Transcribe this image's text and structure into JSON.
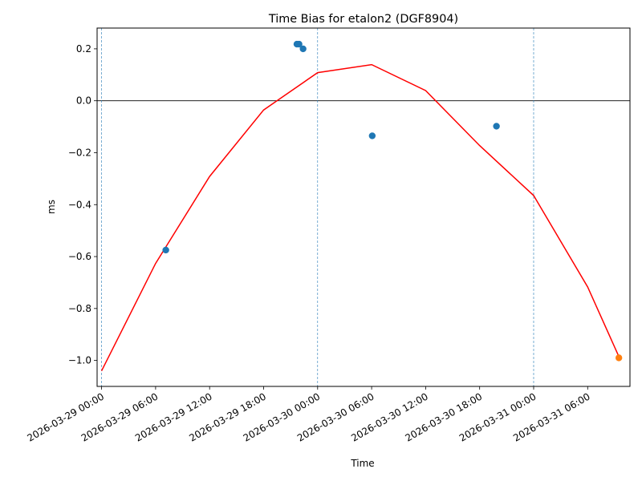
{
  "chart_data": {
    "type": "scatter",
    "title": "Time Bias for etalon2 (DGF8904)",
    "xlabel": "Time",
    "ylabel": "ms",
    "xlim": [
      "2026-03-28T23:30",
      "2026-03-31T10:42"
    ],
    "ylim": [
      -1.1,
      0.28
    ],
    "x_ticks": [
      "2026-03-29 00:00",
      "2026-03-29 06:00",
      "2026-03-29 12:00",
      "2026-03-29 18:00",
      "2026-03-30 00:00",
      "2026-03-30 06:00",
      "2026-03-30 12:00",
      "2026-03-30 18:00",
      "2026-03-31 00:00",
      "2026-03-31 06:00"
    ],
    "x_tick_values": [
      "2026-03-29T00:00",
      "2026-03-29T06:00",
      "2026-03-29T12:00",
      "2026-03-29T18:00",
      "2026-03-30T00:00",
      "2026-03-30T06:00",
      "2026-03-30T12:00",
      "2026-03-30T18:00",
      "2026-03-31T00:00",
      "2026-03-31T06:00"
    ],
    "y_ticks": [
      "−1.0",
      "−0.8",
      "−0.6",
      "−0.4",
      "−0.2",
      "0.0",
      "0.2"
    ],
    "y_tick_values": [
      -1.0,
      -0.8,
      -0.6,
      -0.4,
      -0.2,
      0.0,
      0.2
    ],
    "zero_line": 0.0,
    "day_markers": [
      "2026-03-29T00:00",
      "2026-03-30T00:00",
      "2026-03-31T00:00"
    ],
    "series": [
      {
        "kind": "points",
        "color": "#1f77b4",
        "points": [
          {
            "x": "2026-03-29T07:08",
            "y": -0.575
          },
          {
            "x": "2026-03-29T21:42",
            "y": 0.218
          },
          {
            "x": "2026-03-29T21:56",
            "y": 0.218
          },
          {
            "x": "2026-03-29T22:23",
            "y": 0.2
          },
          {
            "x": "2026-03-30T06:04",
            "y": -0.135
          },
          {
            "x": "2026-03-30T19:52",
            "y": -0.098
          }
        ]
      },
      {
        "kind": "points",
        "color": "#ff7f0e",
        "points": [
          {
            "x": "2026-03-31T09:28",
            "y": -0.99
          }
        ]
      },
      {
        "kind": "line",
        "color": "#ff0000",
        "points": [
          {
            "x": "2026-03-29T00:00",
            "y": -1.04
          },
          {
            "x": "2026-03-29T06:00",
            "y": -0.6264
          },
          {
            "x": "2026-03-29T12:00",
            "y": -0.2916
          },
          {
            "x": "2026-03-29T18:00",
            "y": -0.0356
          },
          {
            "x": "2026-03-30T00:00",
            "y": 0.1083
          },
          {
            "x": "2026-03-30T06:00",
            "y": 0.1393
          },
          {
            "x": "2026-03-30T12:00",
            "y": 0.0392
          },
          {
            "x": "2026-03-30T18:00",
            "y": -0.1725
          },
          {
            "x": "2026-03-31T00:00",
            "y": -0.3649
          },
          {
            "x": "2026-03-31T06:00",
            "y": -0.7171
          },
          {
            "x": "2026-03-31T09:28",
            "y": -0.9853
          }
        ]
      }
    ]
  }
}
